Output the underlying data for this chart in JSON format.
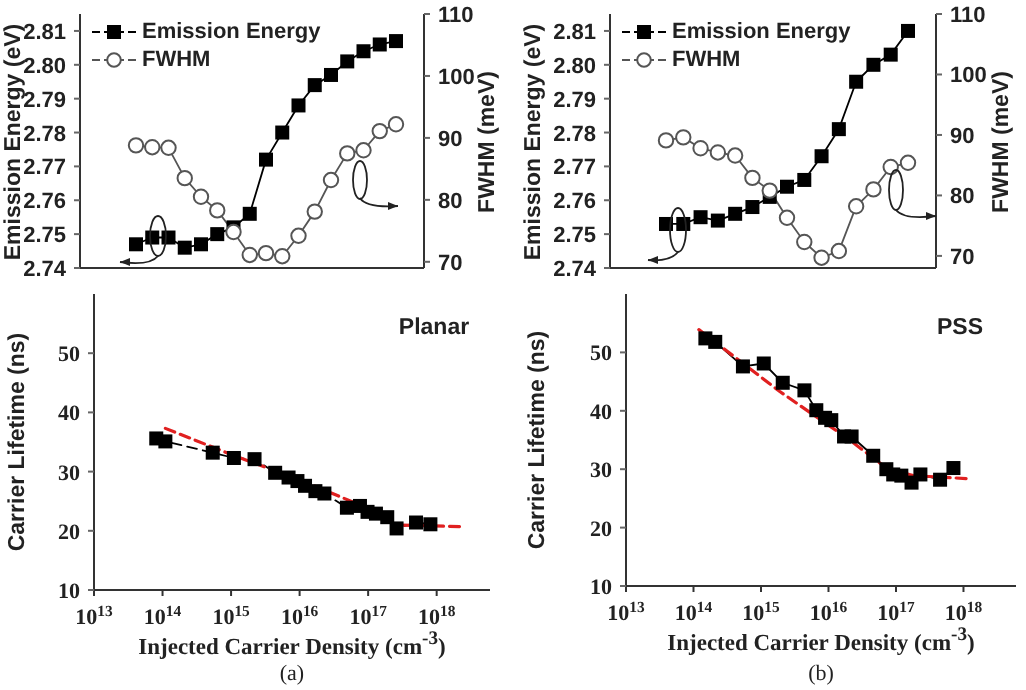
{
  "chart_data": [
    {
      "type": "line",
      "ylabel": "Emission Energy (eV)",
      "y2label": "FWHM (meV)",
      "legend": "top left",
      "categories": [
        null,
        null,
        null,
        null,
        null,
        null,
        null,
        null,
        null,
        null,
        null,
        null,
        null,
        null,
        null,
        null,
        null
      ],
      "ylim": [
        2.74,
        2.815
      ],
      "yticks": [
        2.74,
        2.75,
        2.76,
        2.77,
        2.78,
        2.79,
        {
          "value": 2.8,
          "label": "2.80"
        },
        2.81
      ],
      "y2lim": [
        69,
        110
      ],
      "y2ticks": [
        70,
        80,
        90,
        100,
        110
      ],
      "series": [
        {
          "name": "Emission Energy",
          "color": "#000000",
          "marker": "square",
          "values": [
            2.747,
            2.749,
            2.749,
            2.746,
            2.747,
            2.75,
            2.752,
            2.756,
            2.772,
            2.78,
            2.788,
            2.794,
            2.797,
            2.801,
            2.804,
            2.806,
            2.807
          ]
        },
        {
          "name": "FWHM",
          "color": "#555555",
          "marker": "circle",
          "axis": "y2",
          "values": [
            88.8,
            88.5,
            88.4,
            83.5,
            80.5,
            78.3,
            74.8,
            71.1,
            71.4,
            70.9,
            74.2,
            78.1,
            83.2,
            87.5,
            88.0,
            91.1,
            92.2
          ]
        }
      ]
    },
    {
      "type": "line",
      "ylabel": "Carrier Lifetime (ns)",
      "xlabel": "Injected Carrier Density (cm$^{-3}$)",
      "log": "x",
      "annotations": [
        "Planar",
        "(a)"
      ],
      "xlim": [
        10000000000000.0,
        6e+18
      ],
      "xticks": [
        {
          "value": 10000000000000.0,
          "label": "10$^{13}$"
        },
        {
          "value": 100000000000000.0,
          "label": "10$^{14}$"
        },
        {
          "value": 1000000000000000.0,
          "label": "10$^{15}$"
        },
        {
          "value": 1e+16,
          "label": "10$^{16}$"
        },
        {
          "value": 1e+17,
          "label": "10$^{17}$"
        },
        {
          "value": 1e+18,
          "label": "10$^{18}$"
        }
      ],
      "ylim": [
        10,
        60
      ],
      "yticks": [
        10,
        20,
        30,
        40,
        50
      ],
      "series": [
        {
          "color": "#000000",
          "marker": "square",
          "line_style": "dashed",
          "x": [
            81000000000000.0,
            110000000000000.0,
            540000000000000.0,
            1100000000000000.0,
            2200000000000000.0,
            4400000000000000.0,
            6900000000000000.0,
            9300000000000000.0,
            1.2e+16,
            1.7e+16,
            2.3e+16,
            4.9e+16,
            7.6e+16,
            9.8e+16,
            1.3e+17,
            1.9e+17,
            2.6e+17,
            5e+17,
            8.1e+17
          ],
          "values": [
            35.6,
            35.1,
            33.2,
            32.3,
            32.1,
            29.8,
            29.0,
            28.4,
            27.6,
            26.7,
            26.3,
            23.9,
            24.2,
            23.2,
            22.9,
            22.3,
            20.4,
            21.4,
            21.1
          ]
        },
        {
          "color": "#e02020",
          "marker": "none",
          "line_style": "dashed",
          "x": [
            110000000000000.0,
            1000000000000000.0,
            1e+16,
            1e+17,
            2.5e+17,
            2.5e+18
          ],
          "values": [
            37.3,
            32.9,
            28.6,
            23.8,
            21.0,
            20.7
          ]
        }
      ]
    },
    {
      "type": "line",
      "ylabel": "Emission Energy (eV)",
      "y2label": "FWHM (meV)",
      "legend": "top left",
      "categories": [
        null,
        null,
        null,
        null,
        null,
        null,
        null,
        null,
        null,
        null,
        null,
        null,
        null,
        null,
        null
      ],
      "ylim": [
        2.74,
        2.815
      ],
      "yticks": [
        2.74,
        2.75,
        2.76,
        2.77,
        2.78,
        2.79,
        {
          "value": 2.8,
          "label": "2.80"
        },
        2.81
      ],
      "y2lim": [
        68,
        110
      ],
      "y2ticks": [
        70,
        80,
        90,
        100,
        110
      ],
      "series": [
        {
          "name": "Emission Energy",
          "color": "#000000",
          "marker": "square",
          "values": [
            2.753,
            2.753,
            2.755,
            2.754,
            2.756,
            2.758,
            2.761,
            2.764,
            2.766,
            2.773,
            2.781,
            2.795,
            2.8,
            2.803,
            2.81
          ]
        },
        {
          "name": "FWHM",
          "color": "#555555",
          "marker": "circle",
          "axis": "y2",
          "values": [
            89.1,
            89.6,
            87.8,
            87.1,
            86.6,
            82.9,
            80.8,
            76.3,
            72.3,
            69.7,
            70.8,
            78.2,
            81.0,
            84.7,
            85.4
          ]
        }
      ]
    },
    {
      "type": "line",
      "ylabel": "Carrier Lifetime (ns)",
      "xlabel": "Injected Carrier Density (cm$^{-3}$)",
      "log": "x",
      "annotations": [
        "PSS",
        "(b)"
      ],
      "xlim": [
        10000000000000.0,
        6e+18
      ],
      "xticks": [
        {
          "value": 10000000000000.0,
          "label": "10$^{13}$"
        },
        {
          "value": 100000000000000.0,
          "label": "10$^{14}$"
        },
        {
          "value": 1000000000000000.0,
          "label": "10$^{15}$"
        },
        {
          "value": 1e+16,
          "label": "10$^{16}$"
        },
        {
          "value": 1e+17,
          "label": "10$^{17}$"
        },
        {
          "value": 1e+18,
          "label": "10$^{18}$"
        }
      ],
      "ylim": [
        10,
        60
      ],
      "yticks": [
        10,
        20,
        30,
        40,
        50
      ],
      "series": [
        {
          "color": "#000000",
          "marker": "square",
          "line_style": "solid",
          "x": [
            150000000000000.0,
            210000000000000.0,
            540000000000000.0,
            1100000000000000.0,
            2100000000000000.0,
            4400000000000000.0,
            6600000000000000.0,
            8900000000000000.0,
            1.1e+16,
            1.7e+16,
            2.2e+16,
            4.6e+16,
            7.2e+16,
            9.1e+16,
            1.2e+17,
            1.7e+17,
            2.3e+17,
            4.5e+17,
            7.1e+17
          ],
          "values": [
            52.4,
            51.8,
            47.6,
            48.1,
            44.8,
            43.5,
            40.1,
            38.8,
            38.4,
            35.6,
            35.6,
            32.3,
            30.0,
            29.1,
            28.9,
            27.7,
            29.1,
            28.2,
            30.2
          ]
        },
        {
          "color": "#e02020",
          "marker": "none",
          "line_style": "dashed",
          "x": [
            120000000000000.0,
            1900000000000000.0,
            1.9e+16,
            7.2e+16,
            1.8e+17,
            1.1e+18
          ],
          "values": [
            53.9,
            43.3,
            35.3,
            30.2,
            28.9,
            28.4
          ]
        }
      ]
    }
  ]
}
